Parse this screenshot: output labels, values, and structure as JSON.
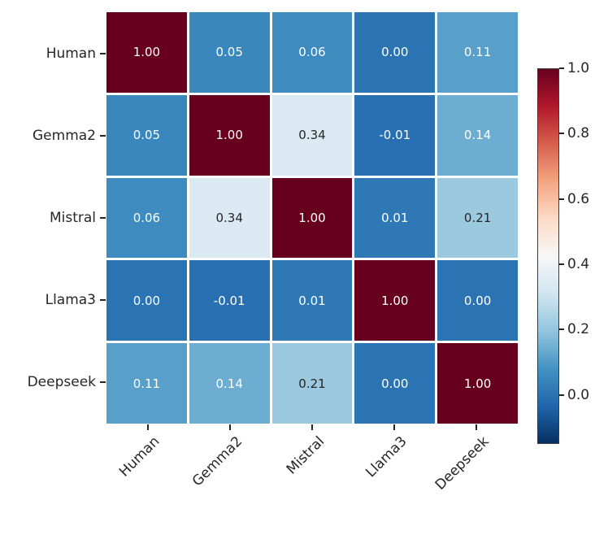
{
  "chart_data": {
    "type": "heatmap",
    "title": "",
    "xlabel": "",
    "ylabel": "",
    "categories": [
      "Human",
      "Gemma2",
      "Mistral",
      "Llama3",
      "Deepseek"
    ],
    "matrix": [
      [
        1.0,
        0.05,
        0.06,
        0.0,
        0.11
      ],
      [
        0.05,
        1.0,
        0.34,
        -0.01,
        0.14
      ],
      [
        0.06,
        0.34,
        1.0,
        0.01,
        0.21
      ],
      [
        0.0,
        -0.01,
        0.01,
        1.0,
        0.0
      ],
      [
        0.11,
        0.14,
        0.21,
        0.0,
        1.0
      ]
    ],
    "value_format": "2dp",
    "vmin": -0.15,
    "vmax": 1.0,
    "colormap": {
      "name": "RdBu_r",
      "stops": [
        "#053061",
        "#2166ac",
        "#4393c3",
        "#92c5de",
        "#d1e5f0",
        "#f7f7f7",
        "#fddbc7",
        "#f4a582",
        "#d6604d",
        "#b2182b",
        "#67001f"
      ]
    },
    "colorbar_ticks": [
      "1.0",
      "0.8",
      "0.6",
      "0.4",
      "0.2",
      "0.0"
    ],
    "colorbar_tick_values": [
      1.0,
      0.8,
      0.6,
      0.4,
      0.2,
      0.0
    ],
    "annotation_colors": {
      "light": "#ffffff",
      "dark": "#262626"
    },
    "legend_position": "right",
    "grid": false,
    "gridline_color": "#ffffff"
  }
}
